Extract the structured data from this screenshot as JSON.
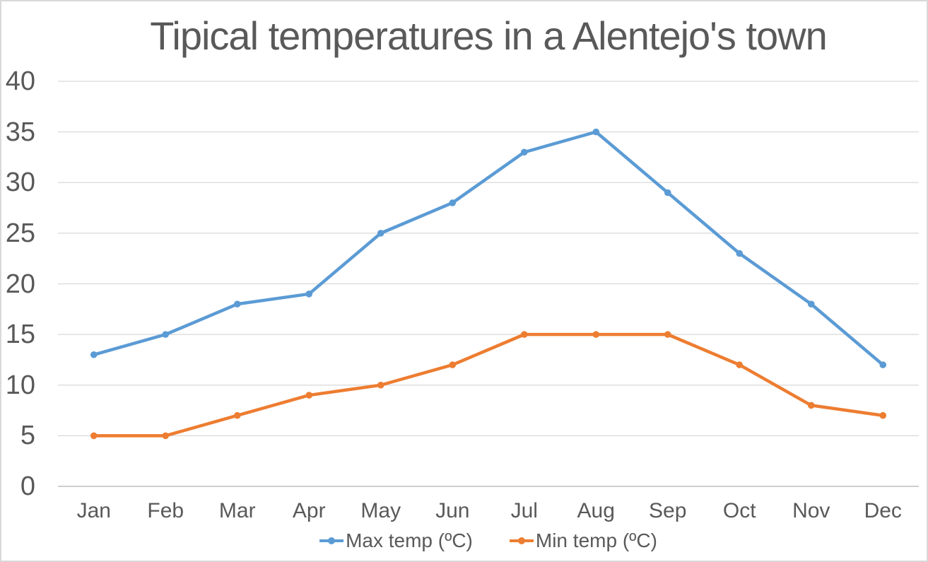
{
  "chart": {
    "title": "Tipical temperatures in a Alentejo's town"
  },
  "chart_data": {
    "type": "line",
    "title": "Tipical temperatures in a Alentejo's town",
    "categories": [
      "Jan",
      "Feb",
      "Mar",
      "Apr",
      "May",
      "Jun",
      "Jul",
      "Aug",
      "Sep",
      "Oct",
      "Nov",
      "Dec"
    ],
    "series": [
      {
        "name": "Max temp (ºC)",
        "color": "#5B9BD5",
        "values": [
          13,
          15,
          18,
          19,
          25,
          28,
          33,
          35,
          29,
          23,
          18,
          12
        ]
      },
      {
        "name": "Min temp (ºC)",
        "color": "#ED7D31",
        "values": [
          5,
          5,
          7,
          9,
          10,
          12,
          15,
          15,
          15,
          12,
          8,
          7
        ]
      }
    ],
    "xlabel": "",
    "ylabel": "",
    "ylim": [
      0,
      40
    ],
    "yticks": [
      0,
      5,
      10,
      15,
      20,
      25,
      30,
      35,
      40
    ],
    "grid": true,
    "legend_position": "bottom"
  },
  "style": {
    "text_color": "#595959",
    "gridline_color": "#D9D9D9",
    "axis_line_color": "#BFBFBF",
    "background_color": "#FFFFFF",
    "border_color": "#D9D9D9"
  }
}
